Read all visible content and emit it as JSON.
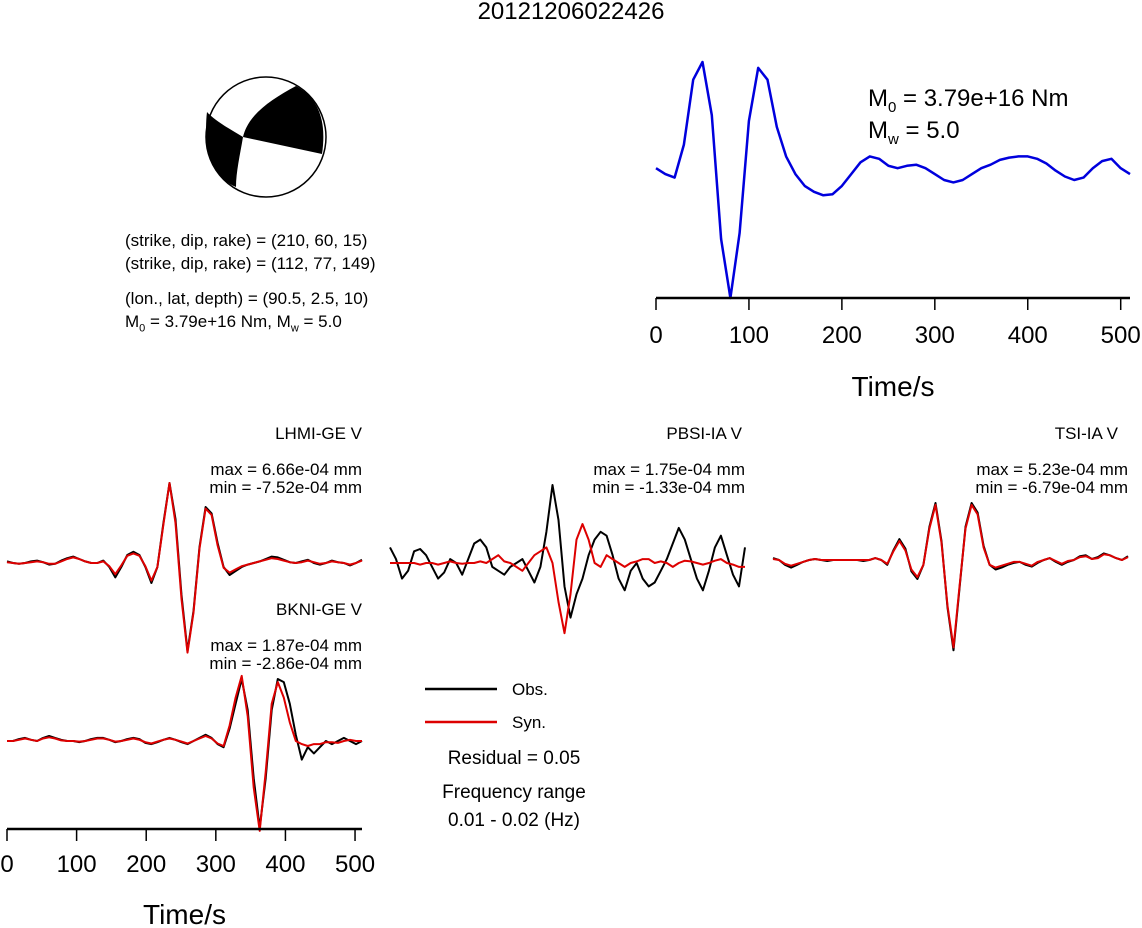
{
  "title": "20121206022426",
  "mechanism": {
    "plane1": "(strike, dip, rake) = (210, 60, 15)",
    "plane2": "(strike, dip, rake) = (112, 77, 149)",
    "location": "(lon., lat, depth) = (90.5, 2.5, 10)",
    "moment_prefix": "M",
    "moment_sub": "0",
    "moment_mid": " = 3.79e+16 Nm, M",
    "mw_sub": "w",
    "mw_tail": " = 5.0"
  },
  "stf_labels": {
    "m0_base": "M",
    "m0_sub": "0",
    "m0_text": " = 3.79e+16 Nm",
    "mw_base": "M",
    "mw_sub": "w",
    "mw_text": " = 5.0"
  },
  "stations": [
    {
      "name": "LHMI-GE V",
      "max": "max = 6.66e-04 mm",
      "min": "min = -7.52e-04 mm"
    },
    {
      "name": "PBSI-IA V",
      "max": "max = 1.75e-04 mm",
      "min": "min = -1.33e-04 mm"
    },
    {
      "name": "TSI-IA V",
      "max": "max = 5.23e-04 mm",
      "min": "min = -6.79e-04 mm"
    },
    {
      "name": "BKNI-GE V",
      "max": "max = 1.87e-04 mm",
      "min": "min = -2.86e-04 mm"
    }
  ],
  "legend": {
    "obs": "Obs.",
    "syn": "Syn."
  },
  "summary": {
    "residual": "Residual = 0.05",
    "freq_label": "Frequency range",
    "freq_value": "0.01 - 0.02 (Hz)"
  },
  "colors": {
    "obs": "#000000",
    "syn": "#dd0000",
    "stf": "#0000dd",
    "beachball_fill": "#000000"
  },
  "chart_data": [
    {
      "type": "line",
      "name": "source time function",
      "xlabel": "Time/s",
      "xlim": [
        0,
        510
      ],
      "xticks": [
        0,
        100,
        200,
        300,
        400,
        500
      ],
      "series": [
        {
          "color": "#0000dd",
          "x": [
            0,
            10,
            20,
            30,
            40,
            50,
            60,
            70,
            80,
            90,
            100,
            110,
            120,
            130,
            140,
            150,
            160,
            170,
            180,
            190,
            200,
            210,
            220,
            230,
            240,
            250,
            260,
            270,
            280,
            290,
            300,
            310,
            320,
            330,
            340,
            350,
            360,
            370,
            380,
            390,
            400,
            410,
            420,
            430,
            440,
            450,
            460,
            470,
            480,
            490,
            500,
            510
          ],
          "values": [
            0.1,
            0.05,
            0.02,
            0.3,
            0.85,
            1.0,
            0.55,
            -0.5,
            -1.0,
            -0.45,
            0.5,
            0.95,
            0.85,
            0.45,
            0.2,
            0.05,
            -0.05,
            -0.1,
            -0.13,
            -0.12,
            -0.05,
            0.05,
            0.15,
            0.2,
            0.18,
            0.12,
            0.1,
            0.12,
            0.13,
            0.1,
            0.05,
            0.0,
            -0.02,
            0.0,
            0.05,
            0.1,
            0.13,
            0.17,
            0.19,
            0.2,
            0.2,
            0.18,
            0.14,
            0.08,
            0.03,
            0.0,
            0.02,
            0.1,
            0.16,
            0.18,
            0.1,
            0.05
          ]
        }
      ]
    },
    {
      "type": "line",
      "name": "LHMI-GE V",
      "series": [
        {
          "name": "Obs.",
          "values": [
            0.02,
            0.0,
            -0.01,
            0.0,
            0.02,
            0.03,
            0.01,
            -0.02,
            -0.01,
            0.03,
            0.06,
            0.08,
            0.05,
            0.02,
            0.0,
            0.0,
            0.03,
            -0.05,
            -0.18,
            -0.05,
            0.1,
            0.14,
            0.1,
            -0.05,
            -0.25,
            -0.05,
            0.5,
            1.0,
            0.55,
            -0.4,
            -1.1,
            -0.6,
            0.2,
            0.7,
            0.62,
            0.25,
            -0.05,
            -0.15,
            -0.1,
            -0.05,
            -0.02,
            0.0,
            0.02,
            0.05,
            0.08,
            0.07,
            0.04,
            0.01,
            0.0,
            0.02,
            0.04,
            0.0,
            -0.02,
            0.0,
            0.03,
            0.01,
            0.0,
            -0.03,
            0.0,
            0.04
          ]
        },
        {
          "name": "Syn.",
          "values": [
            0.01,
            0.0,
            -0.01,
            0.0,
            0.01,
            0.02,
            0.01,
            -0.01,
            -0.01,
            0.02,
            0.05,
            0.07,
            0.05,
            0.02,
            0.0,
            0.0,
            0.02,
            -0.04,
            -0.14,
            -0.03,
            0.09,
            0.12,
            0.09,
            -0.04,
            -0.22,
            -0.05,
            0.48,
            1.0,
            0.5,
            -0.45,
            -1.12,
            -0.62,
            0.18,
            0.68,
            0.6,
            0.22,
            -0.06,
            -0.12,
            -0.08,
            -0.04,
            -0.02,
            0.0,
            0.02,
            0.04,
            0.06,
            0.05,
            0.03,
            0.01,
            0.0,
            0.01,
            0.03,
            0.01,
            -0.01,
            0.0,
            0.02,
            0.01,
            0.0,
            -0.02,
            0.0,
            0.03
          ]
        }
      ]
    },
    {
      "type": "line",
      "name": "PBSI-IA V",
      "series": [
        {
          "name": "Obs.",
          "values": [
            0.2,
            0.05,
            -0.2,
            -0.1,
            0.15,
            0.18,
            0.1,
            -0.05,
            -0.2,
            -0.12,
            0.05,
            0.0,
            -0.15,
            0.05,
            0.25,
            0.3,
            0.2,
            -0.05,
            -0.1,
            -0.15,
            -0.05,
            0.0,
            0.05,
            -0.1,
            -0.25,
            -0.05,
            0.4,
            1.0,
            0.55,
            -0.3,
            -0.7,
            -0.4,
            -0.2,
            0.1,
            0.3,
            0.4,
            0.35,
            0.1,
            -0.2,
            -0.35,
            -0.1,
            0.0,
            -0.2,
            -0.3,
            -0.25,
            -0.1,
            0.05,
            0.25,
            0.45,
            0.3,
            0.05,
            -0.2,
            -0.35,
            -0.1,
            0.2,
            0.35,
            0.1,
            -0.15,
            -0.3,
            0.2
          ]
        },
        {
          "name": "Syn.",
          "values": [
            0.0,
            0.0,
            0.0,
            0.0,
            0.0,
            -0.02,
            0.0,
            0.0,
            -0.02,
            0.0,
            0.02,
            0.0,
            -0.01,
            0.0,
            0.0,
            0.02,
            0.0,
            0.05,
            0.1,
            0.02,
            0.0,
            -0.05,
            -0.1,
            0.0,
            0.1,
            0.15,
            0.2,
            0.0,
            -0.5,
            -0.9,
            -0.4,
            0.3,
            0.5,
            0.3,
            0.0,
            -0.05,
            0.1,
            0.05,
            0.0,
            -0.05,
            0.0,
            0.02,
            0.05,
            0.05,
            0.0,
            0.02,
            0.0,
            -0.05,
            0.0,
            0.03,
            0.02,
            0.0,
            -0.02,
            0.0,
            0.03,
            0.05,
            0.0,
            -0.02,
            -0.05,
            -0.05
          ]
        }
      ]
    },
    {
      "type": "line",
      "name": "TSI-IA V",
      "series": [
        {
          "name": "Obs.",
          "values": [
            0.02,
            0.0,
            -0.05,
            -0.08,
            -0.05,
            -0.02,
            0.0,
            0.01,
            0.0,
            -0.01,
            0.0,
            0.0,
            0.0,
            0.0,
            0.0,
            -0.01,
            0.0,
            0.02,
            0.0,
            -0.05,
            0.1,
            0.22,
            0.12,
            -0.12,
            -0.2,
            -0.05,
            0.35,
            0.6,
            0.2,
            -0.5,
            -0.95,
            -0.3,
            0.35,
            0.6,
            0.5,
            0.15,
            -0.05,
            -0.1,
            -0.08,
            -0.05,
            -0.03,
            -0.02,
            -0.05,
            -0.07,
            -0.03,
            0.0,
            0.02,
            -0.02,
            -0.05,
            -0.02,
            0.0,
            0.04,
            0.05,
            0.01,
            0.03,
            0.07,
            0.05,
            0.02,
            0.0,
            0.04
          ]
        },
        {
          "name": "Syn.",
          "values": [
            0.01,
            0.0,
            -0.04,
            -0.06,
            -0.04,
            -0.02,
            0.0,
            0.01,
            0.0,
            0.0,
            0.0,
            0.0,
            0.0,
            0.0,
            0.0,
            0.0,
            0.0,
            0.02,
            0.0,
            -0.04,
            0.09,
            0.2,
            0.1,
            -0.1,
            -0.18,
            -0.05,
            0.33,
            0.58,
            0.18,
            -0.48,
            -0.92,
            -0.28,
            0.33,
            0.58,
            0.48,
            0.13,
            -0.05,
            -0.08,
            -0.06,
            -0.04,
            -0.02,
            -0.02,
            -0.04,
            -0.06,
            -0.02,
            0.0,
            0.02,
            -0.01,
            -0.04,
            -0.01,
            0.0,
            0.03,
            0.04,
            0.01,
            0.02,
            0.06,
            0.05,
            0.02,
            0.0,
            0.03
          ]
        }
      ]
    },
    {
      "type": "line",
      "name": "BKNI-GE V",
      "xlabel": "Time/s",
      "xlim": [
        0,
        510
      ],
      "xticks": [
        0,
        100,
        200,
        300,
        400,
        500
      ],
      "series": [
        {
          "name": "Obs.",
          "values": [
            0.0,
            0.0,
            0.03,
            0.05,
            0.02,
            0.0,
            0.05,
            0.08,
            0.05,
            0.02,
            0.0,
            0.0,
            -0.02,
            0.0,
            0.03,
            0.05,
            0.05,
            0.02,
            -0.02,
            0.0,
            0.03,
            0.05,
            0.03,
            -0.03,
            -0.05,
            -0.02,
            0.02,
            0.05,
            0.02,
            -0.02,
            -0.05,
            0.0,
            0.05,
            0.1,
            0.05,
            -0.05,
            -0.1,
            0.2,
            0.6,
            1.0,
            0.5,
            -0.6,
            -1.4,
            -0.6,
            0.5,
            1.0,
            0.95,
            0.6,
            0.1,
            -0.3,
            -0.1,
            -0.2,
            -0.1,
            0.0,
            -0.05,
            0.0,
            0.05,
            0.0,
            -0.05,
            0.0
          ]
        },
        {
          "name": "Syn.",
          "values": [
            0.0,
            0.0,
            0.02,
            0.04,
            0.02,
            0.0,
            0.04,
            0.06,
            0.04,
            0.01,
            0.0,
            0.0,
            -0.01,
            0.0,
            0.02,
            0.04,
            0.04,
            0.02,
            -0.01,
            0.0,
            0.02,
            0.04,
            0.02,
            -0.02,
            -0.04,
            -0.01,
            0.02,
            0.04,
            0.02,
            -0.01,
            -0.04,
            0.0,
            0.04,
            0.08,
            0.04,
            -0.04,
            -0.08,
            0.25,
            0.7,
            1.05,
            0.4,
            -0.75,
            -1.45,
            -0.5,
            0.6,
            0.95,
            0.7,
            0.3,
            0.0,
            -0.05,
            -0.08,
            -0.05,
            -0.05,
            -0.02,
            -0.02,
            -0.03,
            0.0,
            0.02,
            0.0,
            0.0
          ]
        }
      ]
    }
  ]
}
